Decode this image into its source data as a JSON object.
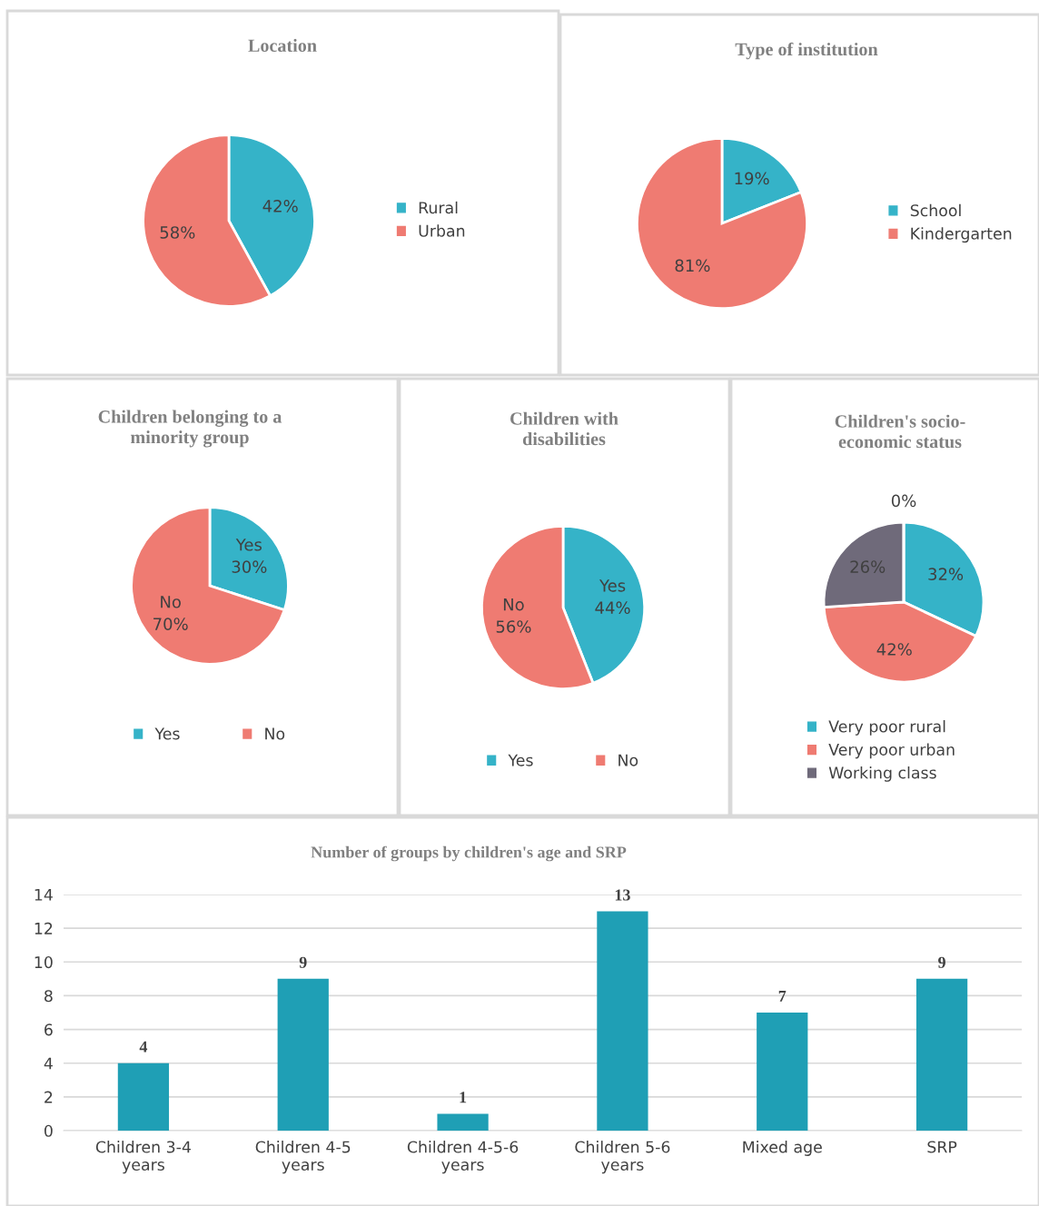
{
  "chart_data": [
    {
      "type": "pie",
      "title": "Location",
      "categories": [
        "Rural",
        "Urban"
      ],
      "values": [
        42,
        58
      ],
      "colors": [
        "#35b3c8",
        "#ef7b72"
      ],
      "value_labels": [
        "42%",
        "58%"
      ],
      "legend": "right"
    },
    {
      "type": "pie",
      "title": "Type of institution",
      "categories": [
        "School",
        "Kindergarten"
      ],
      "values": [
        19,
        81
      ],
      "colors": [
        "#35b3c8",
        "#ef7b72"
      ],
      "value_labels": [
        "19%",
        "81%"
      ],
      "legend": "right"
    },
    {
      "type": "pie",
      "title": "Children belonging to a minority group",
      "categories": [
        "Yes",
        "No"
      ],
      "values": [
        30,
        70
      ],
      "colors": [
        "#35b3c8",
        "#ef7b72"
      ],
      "value_labels": [
        "Yes\n30%",
        "No\n70%"
      ],
      "legend": "bottom"
    },
    {
      "type": "pie",
      "title": "Children with disabilities",
      "categories": [
        "Yes",
        "No"
      ],
      "values": [
        44,
        56
      ],
      "colors": [
        "#35b3c8",
        "#ef7b72"
      ],
      "value_labels": [
        "Yes\n44%",
        "No\n56%"
      ],
      "legend": "bottom"
    },
    {
      "type": "pie",
      "title": "Children's socio-economic status",
      "categories": [
        "Very poor rural",
        "Very poor urban",
        "Working class",
        null
      ],
      "values": [
        32,
        42,
        26,
        0
      ],
      "colors": [
        "#35b3c8",
        "#ef7b72",
        "#6f6a7a",
        "#a5a5a5"
      ],
      "value_labels": [
        "32%",
        "42%",
        "26%",
        "0%"
      ],
      "legend": "bottom left"
    },
    {
      "type": "bar",
      "title": "Number of groups by children's age and SRP",
      "categories": [
        "Children 3-4 years",
        "Children 4-5 years",
        "Children 4-5-6 years",
        "Children 5-6 years",
        "Mixed age",
        "SRP"
      ],
      "values": [
        4,
        9,
        1,
        13,
        7,
        9
      ],
      "color": "#1f9fb5",
      "ylim": [
        0,
        14
      ],
      "yticks": [
        0,
        2,
        4,
        6,
        8,
        10,
        12,
        14
      ],
      "grid": "y",
      "data_labels": true
    }
  ]
}
